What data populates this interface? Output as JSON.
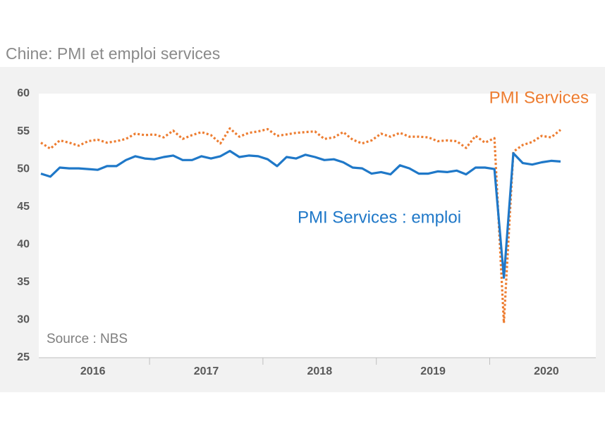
{
  "chart_data": {
    "type": "line",
    "title": "Chine: PMI et emploi services",
    "source": "Source : NBS",
    "categories": [
      null,
      null,
      null,
      null,
      null,
      null,
      "2016",
      null,
      null,
      null,
      null,
      null,
      null,
      null,
      null,
      null,
      null,
      null,
      "2017",
      null,
      null,
      null,
      null,
      null,
      null,
      null,
      null,
      null,
      null,
      null,
      "2018",
      null,
      null,
      null,
      null,
      null,
      null,
      null,
      null,
      null,
      null,
      null,
      "2019",
      null,
      null,
      null,
      null,
      null,
      null,
      null,
      null,
      null,
      null,
      null,
      "2020",
      null
    ],
    "series": [
      {
        "name": "PMI Services",
        "color": "#ed7d31",
        "dashed": true,
        "values": [
          53.5,
          52.7,
          53.8,
          53.5,
          53.1,
          53.7,
          53.9,
          53.5,
          53.7,
          54.0,
          54.7,
          54.5,
          54.6,
          54.2,
          55.1,
          54.0,
          54.5,
          54.9,
          54.5,
          53.4,
          55.4,
          54.3,
          54.8,
          55.0,
          55.3,
          54.4,
          54.6,
          54.8,
          54.9,
          55.0,
          54.0,
          54.2,
          54.9,
          53.9,
          53.4,
          53.8,
          54.7,
          54.3,
          54.8,
          54.3,
          54.3,
          54.2,
          53.7,
          53.8,
          53.7,
          52.8,
          54.4,
          53.5,
          54.1,
          29.6,
          52.3,
          53.2,
          53.6,
          54.4,
          54.2,
          55.2
        ]
      },
      {
        "name": "PMI Services : emploi",
        "color": "#1f78c8",
        "dashed": false,
        "values": [
          49.4,
          49.0,
          50.2,
          50.1,
          50.1,
          50.0,
          49.9,
          50.4,
          50.4,
          51.2,
          51.7,
          51.4,
          51.3,
          51.6,
          51.8,
          51.2,
          51.2,
          51.7,
          51.4,
          51.7,
          52.4,
          51.6,
          51.8,
          51.7,
          51.3,
          50.4,
          51.6,
          51.4,
          51.9,
          51.6,
          51.2,
          51.3,
          50.9,
          50.2,
          50.1,
          49.4,
          49.6,
          49.3,
          50.5,
          50.1,
          49.4,
          49.4,
          49.7,
          49.6,
          49.8,
          49.3,
          50.2,
          50.2,
          50.0,
          35.6,
          52.1,
          50.8,
          50.6,
          50.9,
          51.1,
          51.0
        ]
      }
    ],
    "ylim": [
      25,
      60
    ],
    "yticks": [
      25,
      30,
      35,
      40,
      45,
      50,
      55,
      60
    ],
    "grid": false
  }
}
